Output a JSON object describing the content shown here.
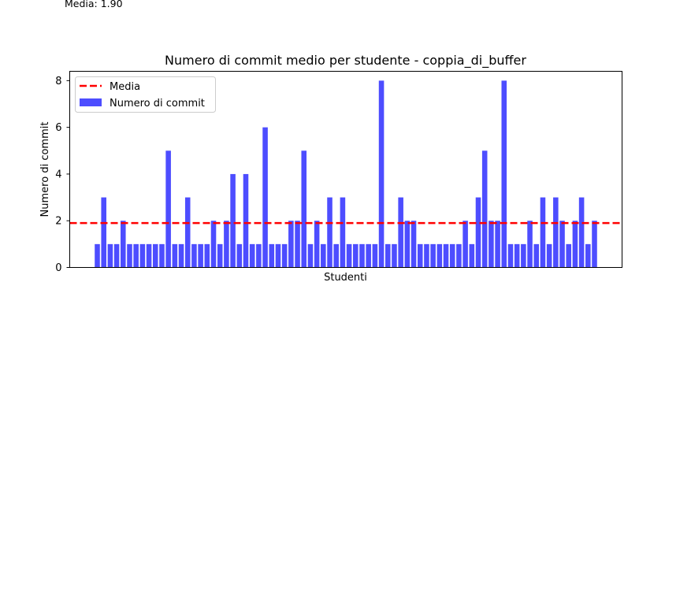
{
  "caption": "Media: 1.90",
  "chart_data": {
    "type": "bar",
    "title": "Numero di commit medio per studente - coppia_di_buffer",
    "xlabel": "Studenti",
    "ylabel": "Numero di commit",
    "ylim": [
      0,
      8.4
    ],
    "yticks": [
      0,
      2,
      4,
      6,
      8
    ],
    "values": [
      1,
      3,
      1,
      1,
      2,
      1,
      1,
      1,
      1,
      1,
      1,
      5,
      1,
      1,
      3,
      1,
      1,
      1,
      2,
      1,
      2,
      4,
      1,
      4,
      1,
      1,
      6,
      1,
      1,
      1,
      2,
      2,
      5,
      1,
      2,
      1,
      3,
      1,
      3,
      1,
      1,
      1,
      1,
      1,
      8,
      1,
      1,
      3,
      2,
      2,
      1,
      1,
      1,
      1,
      1,
      1,
      1,
      2,
      1,
      3,
      5,
      2,
      2,
      8,
      1,
      1,
      1,
      2,
      1,
      3,
      1,
      3,
      2,
      1,
      2,
      3,
      1,
      2
    ],
    "mean": 1.9,
    "legend": {
      "position": "top-left",
      "items": [
        "Media",
        "Numero di commit"
      ]
    },
    "colors": {
      "bar": "#4d4dff",
      "mean_line": "#ff0000"
    },
    "grid": false
  }
}
